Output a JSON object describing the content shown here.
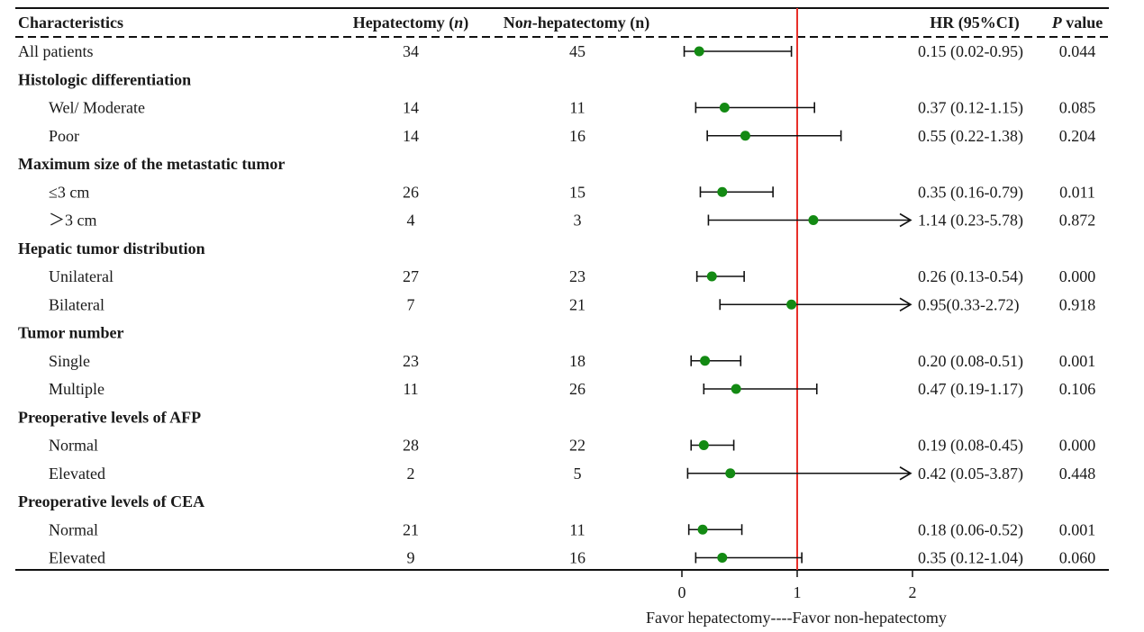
{
  "chart_data": {
    "type": "forest",
    "columns": {
      "characteristics": "Characteristics",
      "hepatectomy": "Hepatectomy (n)",
      "non_hepatectomy": "Non-hepatectomy (n)",
      "hr": "HR (95%CI)",
      "p": "P value"
    },
    "rows": [
      {
        "kind": "row",
        "label": "All patients",
        "hep": "34",
        "non": "45",
        "hr": 0.15,
        "lo": 0.02,
        "hi": 0.95,
        "hr_text": "0.15 (0.02-0.95)",
        "p": "0.044",
        "arrow": false
      },
      {
        "kind": "group",
        "label": "Histologic differentiation"
      },
      {
        "kind": "row",
        "label": "Wel/ Moderate",
        "hep": "14",
        "non": "11",
        "hr": 0.37,
        "lo": 0.12,
        "hi": 1.15,
        "hr_text": "0.37 (0.12-1.15)",
        "p": "0.085",
        "arrow": false
      },
      {
        "kind": "row",
        "label": "Poor",
        "hep": "14",
        "non": "16",
        "hr": 0.55,
        "lo": 0.22,
        "hi": 1.38,
        "hr_text": "0.55 (0.22-1.38)",
        "p": "0.204",
        "arrow": false
      },
      {
        "kind": "group",
        "label": "Maximum size of the metastatic tumor"
      },
      {
        "kind": "row",
        "label": "≤3 cm",
        "hep": "26",
        "non": "15",
        "hr": 0.35,
        "lo": 0.16,
        "hi": 0.79,
        "hr_text": "0.35 (0.16-0.79)",
        "p": "0.011",
        "arrow": false
      },
      {
        "kind": "row",
        "label": "＞3 cm",
        "hep": "4",
        "non": "3",
        "hr": 1.14,
        "lo": 0.23,
        "hi": 5.78,
        "hr_text": "1.14 (0.23-5.78)",
        "p": "0.872",
        "arrow": true
      },
      {
        "kind": "group",
        "label": "Hepatic tumor distribution"
      },
      {
        "kind": "row",
        "label": "Unilateral",
        "hep": "27",
        "non": "23",
        "hr": 0.26,
        "lo": 0.13,
        "hi": 0.54,
        "hr_text": "0.26 (0.13-0.54)",
        "p": "0.000",
        "arrow": false
      },
      {
        "kind": "row",
        "label": "Bilateral",
        "hep": "7",
        "non": "21",
        "hr": 0.95,
        "lo": 0.33,
        "hi": 2.72,
        "hr_text": "0.95(0.33-2.72)",
        "p": "0.918",
        "arrow": true
      },
      {
        "kind": "group",
        "label": "Tumor number"
      },
      {
        "kind": "row",
        "label": "Single",
        "hep": "23",
        "non": "18",
        "hr": 0.2,
        "lo": 0.08,
        "hi": 0.51,
        "hr_text": "0.20 (0.08-0.51)",
        "p": "0.001",
        "arrow": false
      },
      {
        "kind": "row",
        "label": "Multiple",
        "hep": "11",
        "non": "26",
        "hr": 0.47,
        "lo": 0.19,
        "hi": 1.17,
        "hr_text": "0.47 (0.19-1.17)",
        "p": "0.106",
        "arrow": false
      },
      {
        "kind": "group",
        "label": "Preoperative levels of AFP"
      },
      {
        "kind": "row",
        "label": "Normal",
        "hep": "28",
        "non": "22",
        "hr": 0.19,
        "lo": 0.08,
        "hi": 0.45,
        "hr_text": "0.19 (0.08-0.45)",
        "p": "0.000",
        "arrow": false
      },
      {
        "kind": "row",
        "label": "Elevated",
        "hep": "2",
        "non": "5",
        "hr": 0.42,
        "lo": 0.05,
        "hi": 3.87,
        "hr_text": "0.42 (0.05-3.87)",
        "p": "0.448",
        "arrow": true
      },
      {
        "kind": "group",
        "label": "Preoperative levels of CEA"
      },
      {
        "kind": "row",
        "label": "Normal",
        "hep": "21",
        "non": "11",
        "hr": 0.18,
        "lo": 0.06,
        "hi": 0.52,
        "hr_text": "0.18 (0.06-0.52)",
        "p": "0.001",
        "arrow": false
      },
      {
        "kind": "row",
        "label": "Elevated",
        "hep": "9",
        "non": "16",
        "hr": 0.35,
        "lo": 0.12,
        "hi": 1.04,
        "hr_text": "0.35 (0.12-1.04)",
        "p": "0.060",
        "arrow": false
      }
    ],
    "x_axis": {
      "ticks": [
        0,
        1,
        2
      ],
      "tick_labels": [
        "0",
        "1",
        "2"
      ],
      "xlim": [
        0,
        2
      ],
      "reference_line": 1,
      "label": "Favor hepatectomy----Favor non-hepatectomy"
    },
    "colors": {
      "point": "#138a13",
      "reference_line": "#e8302a",
      "lines": "#111111"
    }
  }
}
